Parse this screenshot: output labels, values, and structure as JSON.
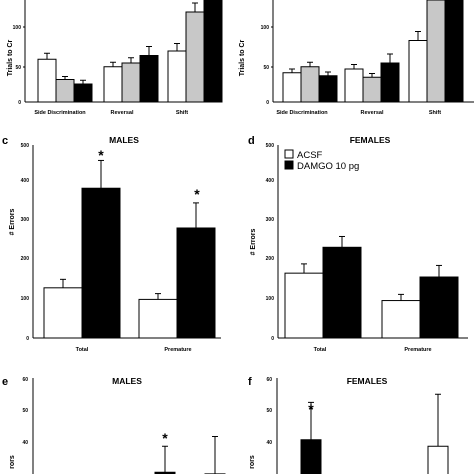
{
  "colors": {
    "white": "#ffffff",
    "gray": "#c8c8c8",
    "black": "#000000"
  },
  "chart_data": [
    {
      "id": "a",
      "type": "bar",
      "ylabel": "Trials to Cr",
      "ylim": [
        0,
        150
      ],
      "yticks": [
        "0",
        "50",
        "100"
      ],
      "categories": [
        "Side Discrimination",
        "Reversal",
        "Shift"
      ],
      "series": [
        {
          "color": "#ffffff",
          "values": [
            57,
            47,
            68
          ],
          "errors": [
            8,
            6,
            10
          ]
        },
        {
          "color": "#c8c8c8",
          "values": [
            30,
            52,
            120
          ],
          "errors": [
            4,
            7,
            12
          ]
        },
        {
          "color": "#000000",
          "values": [
            24,
            62,
            150
          ],
          "errors": [
            5,
            12,
            15
          ]
        }
      ]
    },
    {
      "id": "b",
      "type": "bar",
      "ylabel": "Trials to Cr",
      "ylim": [
        0,
        150
      ],
      "yticks": [
        "0",
        "50",
        "100"
      ],
      "categories": [
        "Side Discrimination",
        "Reversal",
        "Shift"
      ],
      "series": [
        {
          "color": "#ffffff",
          "values": [
            39,
            44,
            82
          ],
          "errors": [
            5,
            6,
            12
          ]
        },
        {
          "color": "#c8c8c8",
          "values": [
            47,
            33,
            140
          ],
          "errors": [
            6,
            5,
            12
          ]
        },
        {
          "color": "#000000",
          "values": [
            35,
            52,
            150
          ],
          "errors": [
            5,
            12,
            15
          ]
        }
      ]
    },
    {
      "id": "c",
      "panel_label": "c",
      "type": "bar",
      "title": "MALES",
      "ylabel": "# Errors",
      "ylim": [
        0,
        500
      ],
      "yticks": [
        "0",
        "100",
        "200",
        "300",
        "400",
        "500"
      ],
      "categories": [
        "Total",
        "Premature"
      ],
      "series": [
        {
          "name": "ACSF",
          "color": "#ffffff",
          "values": [
            130,
            100
          ],
          "errors": [
            22,
            15
          ]
        },
        {
          "name": "DAMGO 10 pg",
          "color": "#000000",
          "values": [
            388,
            285
          ],
          "errors": [
            72,
            65
          ]
        }
      ],
      "annotations": [
        "*",
        "*"
      ]
    },
    {
      "id": "d",
      "panel_label": "d",
      "type": "bar",
      "title": "FEMALES",
      "ylabel": "# Errors",
      "ylim": [
        0,
        500
      ],
      "yticks": [
        "0",
        "100",
        "200",
        "300",
        "400",
        "500"
      ],
      "categories": [
        "Total",
        "Premature"
      ],
      "series": [
        {
          "name": "ACSF",
          "color": "#ffffff",
          "values": [
            168,
            97
          ],
          "errors": [
            24,
            16
          ]
        },
        {
          "name": "DAMGO 10 pg",
          "color": "#000000",
          "values": [
            235,
            158
          ],
          "errors": [
            28,
            30
          ]
        }
      ],
      "legend": [
        "ACSF",
        "DAMGO 10 pg"
      ]
    },
    {
      "id": "e",
      "panel_label": "e",
      "type": "bar",
      "title": "MALES",
      "ylabel": "rors",
      "ylim": [
        0,
        60
      ],
      "yticks": [
        "40",
        "50",
        "60"
      ],
      "categories": [
        "",
        ""
      ],
      "series": [
        {
          "color": "#ffffff",
          "values": [
            0,
            0
          ],
          "errors": [
            0,
            0
          ]
        },
        {
          "color": "#000000",
          "values": [
            0,
            0
          ],
          "errors": [
            0,
            0
          ]
        }
      ],
      "visible_bars": [
        {
          "color": "#000000",
          "value": 31,
          "error": 8
        },
        {
          "color": "#ffffff",
          "value": 30.5,
          "error": 11.5
        }
      ],
      "annotations": [
        "*"
      ]
    },
    {
      "id": "f",
      "panel_label": "f",
      "type": "bar",
      "title": "FEMALES",
      "ylabel": "rors",
      "ylim": [
        0,
        60
      ],
      "yticks": [
        "40",
        "50",
        "60"
      ],
      "categories": [
        "",
        ""
      ],
      "visible_bars": [
        {
          "color": "#000000",
          "value": 41,
          "error": 11.5
        },
        {
          "color": "#ffffff",
          "value": 39,
          "error": 16
        }
      ],
      "annotations": [
        "*"
      ]
    }
  ]
}
